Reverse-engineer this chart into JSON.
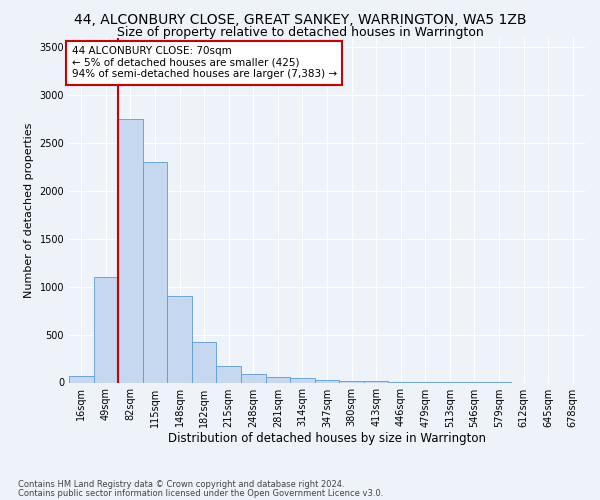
{
  "title": "44, ALCONBURY CLOSE, GREAT SANKEY, WARRINGTON, WA5 1ZB",
  "subtitle": "Size of property relative to detached houses in Warrington",
  "xlabel": "Distribution of detached houses by size in Warrington",
  "ylabel": "Number of detached properties",
  "categories": [
    "16sqm",
    "49sqm",
    "82sqm",
    "115sqm",
    "148sqm",
    "182sqm",
    "215sqm",
    "248sqm",
    "281sqm",
    "314sqm",
    "347sqm",
    "380sqm",
    "413sqm",
    "446sqm",
    "479sqm",
    "513sqm",
    "546sqm",
    "579sqm",
    "612sqm",
    "645sqm",
    "678sqm"
  ],
  "values": [
    65,
    1100,
    2750,
    2300,
    900,
    420,
    175,
    90,
    60,
    45,
    30,
    20,
    15,
    10,
    5,
    3,
    2,
    1,
    0,
    0,
    0
  ],
  "bar_color": "#c5d8f0",
  "bar_edge_color": "#5b9bd5",
  "highlight_color": "#cc0000",
  "highlight_line_bar_index": 2,
  "annotation_text": "44 ALCONBURY CLOSE: 70sqm\n← 5% of detached houses are smaller (425)\n94% of semi-detached houses are larger (7,383) →",
  "annotation_box_color": "#ffffff",
  "annotation_box_edge_color": "#cc0000",
  "ylim": [
    0,
    3600
  ],
  "yticks": [
    0,
    500,
    1000,
    1500,
    2000,
    2500,
    3000,
    3500
  ],
  "footer1": "Contains HM Land Registry data © Crown copyright and database right 2024.",
  "footer2": "Contains public sector information licensed under the Open Government Licence v3.0.",
  "bg_color": "#eef2f9",
  "plot_bg_color": "#eef2f9",
  "grid_color": "#ffffff",
  "title_fontsize": 10,
  "subtitle_fontsize": 9,
  "tick_fontsize": 7,
  "ylabel_fontsize": 8,
  "xlabel_fontsize": 8.5,
  "annotation_fontsize": 7.5,
  "footer_fontsize": 6
}
